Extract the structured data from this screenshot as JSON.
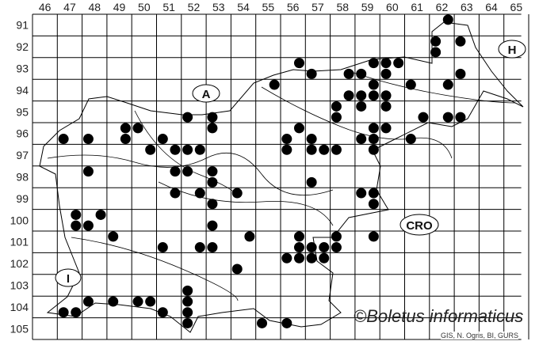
{
  "map": {
    "column_labels": [
      "46",
      "47",
      "48",
      "49",
      "50",
      "51",
      "52",
      "53",
      "54",
      "55",
      "56",
      "57",
      "58",
      "59",
      "60",
      "61",
      "62",
      "63",
      "64",
      "65"
    ],
    "row_labels": [
      "91",
      "92",
      "93",
      "94",
      "95",
      "96",
      "97",
      "98",
      "99",
      "100",
      "101",
      "102",
      "103",
      "104",
      "105"
    ],
    "region_labels": {
      "austria": "A",
      "hungary": "H",
      "croatia": "CRO",
      "italy": "I"
    },
    "copyright": "©Boletus informaticus",
    "credit": "GIS, N. Ogris, BI, GURS",
    "dot_color": "#000000",
    "records_note_format": "[column, row, quadrant]",
    "records": [
      [
        62,
        91,
        2
      ],
      [
        62,
        92,
        1
      ],
      [
        63,
        92,
        1
      ],
      [
        62,
        92,
        3
      ],
      [
        56,
        93,
        2
      ],
      [
        59,
        93,
        2
      ],
      [
        60,
        93,
        1
      ],
      [
        60,
        93,
        2
      ],
      [
        57,
        93,
        3
      ],
      [
        58,
        93,
        4
      ],
      [
        59,
        93,
        3
      ],
      [
        60,
        93,
        3
      ],
      [
        63,
        93,
        3
      ],
      [
        55,
        94,
        2
      ],
      [
        59,
        94,
        2
      ],
      [
        61,
        94,
        1
      ],
      [
        62,
        94,
        2
      ],
      [
        58,
        94,
        4
      ],
      [
        59,
        94,
        3
      ],
      [
        59,
        94,
        4
      ],
      [
        60,
        94,
        3
      ],
      [
        59,
        95,
        1
      ],
      [
        60,
        95,
        1
      ],
      [
        58,
        95,
        1
      ],
      [
        58,
        95,
        3
      ],
      [
        61,
        95,
        4
      ],
      [
        62,
        95,
        4
      ],
      [
        63,
        95,
        3
      ],
      [
        56,
        96,
        2
      ],
      [
        59,
        96,
        2
      ],
      [
        60,
        96,
        1
      ],
      [
        56,
        96,
        3
      ],
      [
        57,
        96,
        3
      ],
      [
        59,
        96,
        3
      ],
      [
        59,
        96,
        4
      ],
      [
        61,
        96,
        3
      ],
      [
        56,
        97,
        1
      ],
      [
        57,
        97,
        1
      ],
      [
        57,
        97,
        2
      ],
      [
        58,
        97,
        1
      ],
      [
        59,
        97,
        2
      ],
      [
        52,
        95,
        3
      ],
      [
        53,
        95,
        3
      ],
      [
        53,
        96,
        1
      ],
      [
        49,
        96,
        2
      ],
      [
        50,
        96,
        1
      ],
      [
        47,
        96,
        3
      ],
      [
        48,
        96,
        3
      ],
      [
        49,
        96,
        4
      ],
      [
        51,
        96,
        3
      ],
      [
        50,
        97,
        2
      ],
      [
        51,
        97,
        2
      ],
      [
        52,
        97,
        1
      ],
      [
        52,
        97,
        2
      ],
      [
        48,
        98,
        1
      ],
      [
        51,
        98,
        2
      ],
      [
        52,
        98,
        1
      ],
      [
        53,
        98,
        1
      ],
      [
        53,
        98,
        3
      ],
      [
        51,
        99,
        2
      ],
      [
        52,
        99,
        2
      ],
      [
        54,
        99,
        1
      ],
      [
        53,
        99,
        3
      ],
      [
        47,
        100,
        2
      ],
      [
        48,
        100,
        2
      ],
      [
        47,
        100,
        4
      ],
      [
        48,
        100,
        3
      ],
      [
        53,
        100,
        3
      ],
      [
        49,
        101,
        1
      ],
      [
        54,
        101,
        2
      ],
      [
        51,
        101,
        3
      ],
      [
        52,
        101,
        4
      ],
      [
        53,
        101,
        3
      ],
      [
        54,
        102,
        3
      ],
      [
        52,
        103,
        3
      ],
      [
        48,
        104,
        1
      ],
      [
        49,
        104,
        1
      ],
      [
        50,
        104,
        1
      ],
      [
        50,
        104,
        2
      ],
      [
        52,
        104,
        1
      ],
      [
        47,
        104,
        3
      ],
      [
        47,
        104,
        4
      ],
      [
        51,
        104,
        3
      ],
      [
        52,
        104,
        3
      ],
      [
        52,
        105,
        1
      ],
      [
        55,
        105,
        1
      ],
      [
        57,
        98,
        3
      ],
      [
        59,
        99,
        1
      ],
      [
        59,
        99,
        2
      ],
      [
        59,
        99,
        4
      ],
      [
        56,
        101,
        2
      ],
      [
        58,
        101,
        1
      ],
      [
        59,
        101,
        2
      ],
      [
        56,
        101,
        4
      ],
      [
        57,
        101,
        3
      ],
      [
        57,
        101,
        4
      ],
      [
        58,
        101,
        3
      ],
      [
        56,
        102,
        1
      ],
      [
        56,
        102,
        2
      ],
      [
        57,
        102,
        1
      ],
      [
        57,
        102,
        2
      ],
      [
        56,
        105,
        1
      ]
    ]
  }
}
